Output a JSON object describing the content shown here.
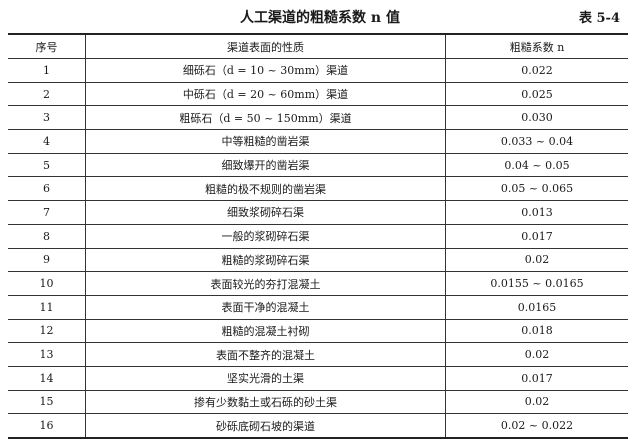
{
  "title": "人工渠道的粗糙系数 n 值",
  "table_no": "表 5-4",
  "headers": [
    "序号",
    "渠道表面的性质",
    "粗糙系数 n"
  ],
  "rows": [
    [
      "1",
      "细砾石（d = 10 ~ 30mm）渠道",
      "0.022"
    ],
    [
      "2",
      "中砾石（d = 20 ~ 60mm）渠道",
      "0.025"
    ],
    [
      "3",
      "粗砾石（d = 50 ~ 150mm）渠道",
      "0.030"
    ],
    [
      "4",
      "中等粗糙的凿岩渠",
      "0.033 ~ 0.04"
    ],
    [
      "5",
      "细致爆开的凿岩渠",
      "0.04 ~ 0.05"
    ],
    [
      "6",
      "粗糙的极不规则的凿岩渠",
      "0.05 ~ 0.065"
    ],
    [
      "7",
      "细致浆砌碎石渠",
      "0.013"
    ],
    [
      "8",
      "一般的浆砌碎石渠",
      "0.017"
    ],
    [
      "9",
      "粗糙的浆砌碎石渠",
      "0.02"
    ],
    [
      "10",
      "表面较光的夯打混凝土",
      "0.0155 ~ 0.0165"
    ],
    [
      "11",
      "表面干净的混凝土",
      "0.0165"
    ],
    [
      "12",
      "粗糙的混凝土衬砌",
      "0.018"
    ],
    [
      "13",
      "表面不整齐的混凝土",
      "0.02"
    ],
    [
      "14",
      "坚实光滑的土渠",
      "0.017"
    ],
    [
      "15",
      "掺有少数黏土或石砾的砂土渠",
      "0.02"
    ],
    [
      "16",
      "砂砾底砌石坡的渠道",
      "0.02 ~ 0.022"
    ]
  ]
}
